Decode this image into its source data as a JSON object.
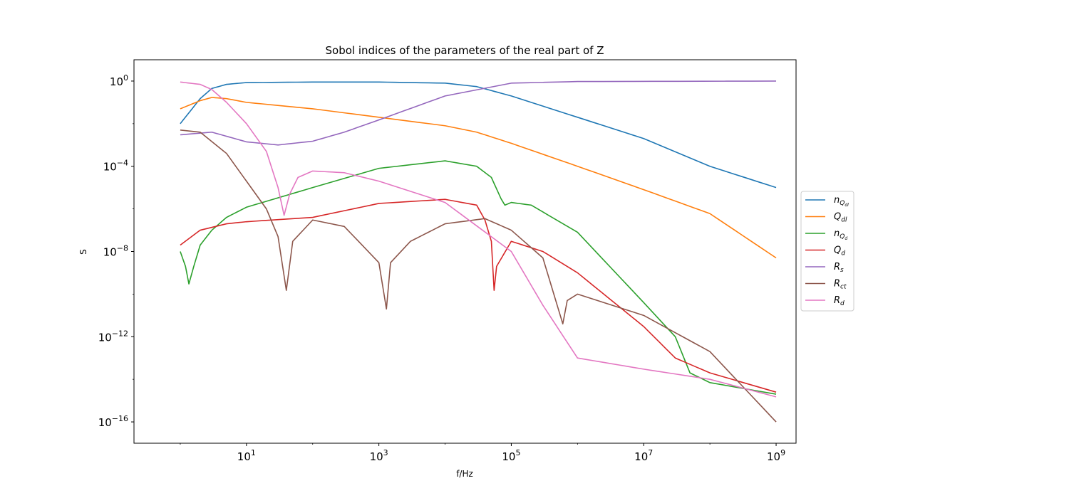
{
  "chart_data": {
    "type": "line",
    "title": "Sobol indices of the parameters of the real part of Z",
    "xlabel": "f/Hz",
    "ylabel": "S",
    "xscale": "log",
    "yscale": "log",
    "xlim": [
      0.2,
      2000000000
    ],
    "ylim": [
      1e-17,
      10
    ],
    "grid": false,
    "legend_position": "center-right outside plot",
    "x_ticks": [
      {
        "base": "10",
        "exp": "1",
        "value": 10
      },
      {
        "base": "10",
        "exp": "3",
        "value": 1000
      },
      {
        "base": "10",
        "exp": "5",
        "value": 100000
      },
      {
        "base": "10",
        "exp": "7",
        "value": 10000000
      },
      {
        "base": "10",
        "exp": "9",
        "value": 1000000000
      }
    ],
    "y_ticks": [
      {
        "base": "10",
        "exp": "0",
        "value": 1
      },
      {
        "base": "10",
        "exp": "−4",
        "value": 0.0001
      },
      {
        "base": "10",
        "exp": "−8",
        "value": 1e-08
      },
      {
        "base": "10",
        "exp": "−12",
        "value": 1e-12
      },
      {
        "base": "10",
        "exp": "−16",
        "value": 1e-16
      }
    ],
    "series": [
      {
        "name": "nQdl",
        "label_main": "n",
        "label_sub": "Q",
        "label_subsub": "dl",
        "color": "#1f77b4",
        "points": [
          [
            1,
            0.01
          ],
          [
            2,
            0.15
          ],
          [
            3,
            0.45
          ],
          [
            5,
            0.7
          ],
          [
            10,
            0.85
          ],
          [
            100,
            0.9
          ],
          [
            1000,
            0.9
          ],
          [
            10000,
            0.8
          ],
          [
            30000,
            0.55
          ],
          [
            100000,
            0.2
          ],
          [
            1000000,
            0.02
          ],
          [
            10000000,
            0.002
          ],
          [
            100000000,
            0.0001
          ],
          [
            1000000000,
            1e-05
          ]
        ]
      },
      {
        "name": "Qdl",
        "label_main": "Q",
        "label_sub": "dl",
        "label_subsub": "",
        "color": "#ff7f0e",
        "points": [
          [
            1,
            0.05
          ],
          [
            2,
            0.12
          ],
          [
            3,
            0.17
          ],
          [
            5,
            0.15
          ],
          [
            10,
            0.1
          ],
          [
            100,
            0.05
          ],
          [
            1000,
            0.02
          ],
          [
            10000,
            0.008
          ],
          [
            30000,
            0.004
          ],
          [
            100000,
            0.0012
          ],
          [
            1000000,
            0.0001
          ],
          [
            10000000,
            8e-06
          ],
          [
            100000000,
            6e-07
          ],
          [
            1000000000,
            5e-09
          ]
        ]
      },
      {
        "name": "nQd",
        "label_main": "n",
        "label_sub": "Q",
        "label_subsub": "d",
        "color": "#2ca02c",
        "points": [
          [
            1,
            1e-08
          ],
          [
            1.2,
            2e-09
          ],
          [
            1.35,
            3e-10
          ],
          [
            1.6,
            2e-09
          ],
          [
            2,
            2e-08
          ],
          [
            3,
            1e-07
          ],
          [
            5,
            4e-07
          ],
          [
            10,
            1.2e-06
          ],
          [
            100,
            1e-05
          ],
          [
            1000,
            8e-05
          ],
          [
            10000,
            0.00018
          ],
          [
            30000,
            0.0001
          ],
          [
            50000,
            3e-05
          ],
          [
            70000,
            3e-06
          ],
          [
            80000,
            1.5e-06
          ],
          [
            100000,
            2e-06
          ],
          [
            200000,
            1.5e-06
          ],
          [
            1000000,
            8e-08
          ],
          [
            10000000,
            4e-11
          ],
          [
            30000000,
            1e-12
          ],
          [
            50000000,
            2e-14
          ],
          [
            100000000,
            7e-15
          ],
          [
            1000000000,
            2e-15
          ]
        ]
      },
      {
        "name": "Qd",
        "label_main": "Q",
        "label_sub": "d",
        "label_subsub": "",
        "color": "#d62728",
        "points": [
          [
            1,
            2e-08
          ],
          [
            2,
            1e-07
          ],
          [
            5,
            2e-07
          ],
          [
            10,
            2.5e-07
          ],
          [
            100,
            4e-07
          ],
          [
            1000,
            1.8e-06
          ],
          [
            10000,
            2.8e-06
          ],
          [
            30000,
            1.5e-06
          ],
          [
            40000,
            3e-07
          ],
          [
            50000,
            3e-08
          ],
          [
            55000,
            1.5e-10
          ],
          [
            60000,
            2e-09
          ],
          [
            100000,
            3e-08
          ],
          [
            300000,
            1e-08
          ],
          [
            1000000,
            1e-09
          ],
          [
            10000000,
            3e-12
          ],
          [
            30000000,
            1e-13
          ],
          [
            100000000,
            2e-14
          ],
          [
            1000000000,
            2.5e-15
          ]
        ]
      },
      {
        "name": "Rs",
        "label_main": "R",
        "label_sub": "s",
        "label_subsub": "",
        "color": "#9467bd",
        "points": [
          [
            1,
            0.003
          ],
          [
            3,
            0.004
          ],
          [
            10,
            0.0014
          ],
          [
            30,
            0.001
          ],
          [
            100,
            0.0015
          ],
          [
            300,
            0.004
          ],
          [
            1000,
            0.015
          ],
          [
            10000,
            0.2
          ],
          [
            100000,
            0.8
          ],
          [
            1000000,
            0.95
          ],
          [
            1000000000,
            1
          ]
        ]
      },
      {
        "name": "Rct",
        "label_main": "R",
        "label_sub": "ct",
        "label_subsub": "",
        "color": "#8c564b",
        "points": [
          [
            1,
            0.005
          ],
          [
            2,
            0.004
          ],
          [
            5,
            0.0004
          ],
          [
            10,
            2e-05
          ],
          [
            20,
            1e-06
          ],
          [
            30,
            5e-08
          ],
          [
            40,
            1.5e-10
          ],
          [
            50,
            3e-08
          ],
          [
            100,
            3e-07
          ],
          [
            300,
            1.5e-07
          ],
          [
            1000,
            3e-09
          ],
          [
            1300,
            2e-11
          ],
          [
            1500,
            3e-09
          ],
          [
            3000,
            3e-08
          ],
          [
            10000,
            2e-07
          ],
          [
            40000,
            3.5e-07
          ],
          [
            100000,
            1e-07
          ],
          [
            300000,
            5e-09
          ],
          [
            600000,
            4e-12
          ],
          [
            700000,
            5e-11
          ],
          [
            1000000,
            1e-10
          ],
          [
            10000000,
            1e-11
          ],
          [
            100000000,
            2e-13
          ],
          [
            1000000000,
            1e-16
          ]
        ]
      },
      {
        "name": "Rd",
        "label_main": "R",
        "label_sub": "d",
        "label_subsub": "",
        "color": "#e377c2",
        "points": [
          [
            1,
            0.9
          ],
          [
            2,
            0.7
          ],
          [
            3,
            0.4
          ],
          [
            5,
            0.1
          ],
          [
            10,
            0.01
          ],
          [
            20,
            0.0005
          ],
          [
            30,
            1e-05
          ],
          [
            37,
            5e-07
          ],
          [
            45,
            5e-06
          ],
          [
            60,
            3e-05
          ],
          [
            100,
            6e-05
          ],
          [
            300,
            5e-05
          ],
          [
            1000,
            2e-05
          ],
          [
            10000,
            2e-06
          ],
          [
            100000,
            1e-08
          ],
          [
            300000,
            3e-11
          ],
          [
            1000000,
            1e-13
          ],
          [
            10000000,
            3e-14
          ],
          [
            100000000,
            1e-14
          ],
          [
            1000000000,
            1.5e-15
          ]
        ]
      }
    ]
  }
}
